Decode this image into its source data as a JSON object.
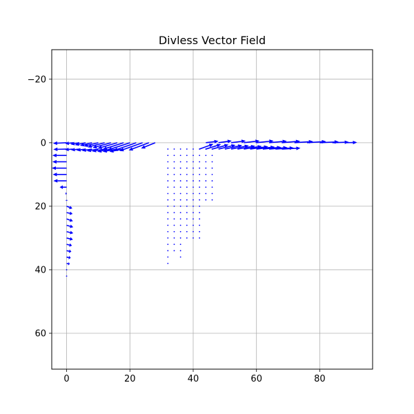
{
  "chart_data": {
    "type": "quiver",
    "title": "Divless Vector Field",
    "xlabel": "",
    "ylabel": "",
    "xlim": [
      -4.7,
      96.7
    ],
    "ylim": [
      71.3,
      -29.3
    ],
    "y_inverted": true,
    "grid": true,
    "x_ticks": [
      0,
      20,
      40,
      60,
      80
    ],
    "y_ticks": [
      -20,
      0,
      20,
      40,
      60
    ],
    "arrow_color": "#0000ff",
    "grid_color": "#b0b0b0",
    "series": [
      {
        "region": "top-left band",
        "vectors": [
          {
            "x": 0,
            "y": 0,
            "u": -4.3,
            "v": 0.2
          },
          {
            "x": 2,
            "y": 0,
            "u": -2.4,
            "v": 0.3
          },
          {
            "x": 4,
            "y": 0,
            "u": -2.8,
            "v": 0.5
          },
          {
            "x": 6,
            "y": 0,
            "u": -3.4,
            "v": 0.7
          },
          {
            "x": 8,
            "y": 0,
            "u": -3.8,
            "v": 0.9
          },
          {
            "x": 10,
            "y": 0,
            "u": -4.6,
            "v": 1.1
          },
          {
            "x": 12,
            "y": 0,
            "u": -5.4,
            "v": 1.4
          },
          {
            "x": 14,
            "y": 0,
            "u": -5.8,
            "v": 1.6
          },
          {
            "x": 16,
            "y": 0,
            "u": -6.2,
            "v": 1.8
          },
          {
            "x": 18,
            "y": 0,
            "u": -6.6,
            "v": 2.1
          },
          {
            "x": 20,
            "y": 0,
            "u": -7.0,
            "v": 2.3
          },
          {
            "x": 22,
            "y": 0,
            "u": -7.2,
            "v": 2.5
          },
          {
            "x": 24,
            "y": 0,
            "u": -7.3,
            "v": 2.6
          },
          {
            "x": 26,
            "y": 0,
            "u": -6.4,
            "v": 2.4
          },
          {
            "x": 28,
            "y": 0,
            "u": -4.5,
            "v": 1.8
          },
          {
            "x": 0,
            "y": 2,
            "u": -4.2,
            "v": 0.1
          },
          {
            "x": 2,
            "y": 2,
            "u": -2.5,
            "v": 0.2
          },
          {
            "x": 4,
            "y": 2,
            "u": -2.6,
            "v": 0.3
          },
          {
            "x": 6,
            "y": 2,
            "u": -2.9,
            "v": 0.4
          },
          {
            "x": 8,
            "y": 2,
            "u": -3.2,
            "v": 0.5
          },
          {
            "x": 10,
            "y": 2,
            "u": -3.6,
            "v": 0.6
          },
          {
            "x": 12,
            "y": 2,
            "u": -4.0,
            "v": 0.7
          },
          {
            "x": 14,
            "y": 2,
            "u": -4.3,
            "v": 0.8
          },
          {
            "x": 16,
            "y": 2,
            "u": -4.6,
            "v": 0.8
          },
          {
            "x": 18,
            "y": 2,
            "u": -4.5,
            "v": 0.8
          }
        ]
      },
      {
        "region": "left column",
        "vectors": [
          {
            "x": 0,
            "y": 4,
            "u": -4.5,
            "v": 0.0
          },
          {
            "x": 0,
            "y": 6,
            "u": -4.5,
            "v": 0.0
          },
          {
            "x": 0,
            "y": 8,
            "u": -4.7,
            "v": 0.0
          },
          {
            "x": 0,
            "y": 10,
            "u": -4.4,
            "v": 0.0
          },
          {
            "x": 0,
            "y": 12,
            "u": -4.2,
            "v": 0.0
          },
          {
            "x": 0,
            "y": 14,
            "u": -2.2,
            "v": 0.0
          },
          {
            "x": 0,
            "y": 16,
            "u": -0.4,
            "v": 0.0
          },
          {
            "x": 0,
            "y": 18,
            "u": 0.0,
            "v": 0.3
          },
          {
            "x": 0,
            "y": 20,
            "u": 1.8,
            "v": 0.7
          },
          {
            "x": 0,
            "y": 22,
            "u": 1.9,
            "v": 0.4
          },
          {
            "x": 0,
            "y": 24,
            "u": 2.0,
            "v": 0.7
          },
          {
            "x": 0,
            "y": 26,
            "u": 2.1,
            "v": 0.6
          },
          {
            "x": 0,
            "y": 28,
            "u": 2.1,
            "v": 0.5
          },
          {
            "x": 0,
            "y": 30,
            "u": 2.0,
            "v": 0.5
          },
          {
            "x": 0,
            "y": 32,
            "u": 1.7,
            "v": 0.4
          },
          {
            "x": 0,
            "y": 34,
            "u": 1.5,
            "v": 0.3
          },
          {
            "x": 0,
            "y": 36,
            "u": 1.3,
            "v": 0.3
          },
          {
            "x": 0,
            "y": 38,
            "u": 1.0,
            "v": 0.2
          },
          {
            "x": 0,
            "y": 40,
            "u": 0.1,
            "v": 0.1
          },
          {
            "x": 0,
            "y": 42,
            "u": 0.0,
            "v": 0.0
          }
        ]
      },
      {
        "region": "top-right band",
        "vectors": [
          {
            "x": 42,
            "y": 2,
            "u": 4.4,
            "v": -1.6
          },
          {
            "x": 44,
            "y": 2,
            "u": 4.8,
            "v": -1.5
          },
          {
            "x": 46,
            "y": 2,
            "u": 5.2,
            "v": -1.4
          },
          {
            "x": 48,
            "y": 2,
            "u": 5.4,
            "v": -1.3
          },
          {
            "x": 50,
            "y": 2,
            "u": 5.5,
            "v": -1.2
          },
          {
            "x": 52,
            "y": 2,
            "u": 5.6,
            "v": -1.1
          },
          {
            "x": 54,
            "y": 2,
            "u": 5.6,
            "v": -1.0
          },
          {
            "x": 56,
            "y": 2,
            "u": 5.7,
            "v": -0.9
          },
          {
            "x": 58,
            "y": 2,
            "u": 5.7,
            "v": -0.8
          },
          {
            "x": 60,
            "y": 2,
            "u": 5.8,
            "v": -0.7
          },
          {
            "x": 62,
            "y": 2,
            "u": 5.8,
            "v": -0.6
          },
          {
            "x": 64,
            "y": 2,
            "u": 5.8,
            "v": -0.5
          },
          {
            "x": 66,
            "y": 2,
            "u": 5.8,
            "v": -0.4
          },
          {
            "x": 68,
            "y": 2,
            "u": 5.9,
            "v": -0.3
          },
          {
            "x": 44,
            "y": 0,
            "u": 4.0,
            "v": -0.5
          },
          {
            "x": 48,
            "y": 0,
            "u": 4.2,
            "v": -0.6
          },
          {
            "x": 52,
            "y": 0,
            "u": 4.6,
            "v": -0.6
          },
          {
            "x": 56,
            "y": 0,
            "u": 5.0,
            "v": -0.6
          },
          {
            "x": 60,
            "y": 0,
            "u": 5.4,
            "v": -0.6
          },
          {
            "x": 64,
            "y": 0,
            "u": 5.6,
            "v": -0.5
          },
          {
            "x": 68,
            "y": 0,
            "u": 5.8,
            "v": -0.5
          },
          {
            "x": 72,
            "y": 0,
            "u": 5.9,
            "v": -0.4
          },
          {
            "x": 76,
            "y": 0,
            "u": 6.0,
            "v": -0.4
          },
          {
            "x": 80,
            "y": 0,
            "u": 6.0,
            "v": -0.3
          },
          {
            "x": 84,
            "y": 0,
            "u": 5.2,
            "v": -0.2
          },
          {
            "x": 88,
            "y": 0,
            "u": 3.8,
            "v": -0.1
          }
        ]
      },
      {
        "region": "center dot field",
        "rows": [
          {
            "y": 2,
            "x": [
              32,
              34,
              36,
              38,
              40,
              42,
              44,
              46
            ]
          },
          {
            "y": 4,
            "x": [
              32,
              34,
              36,
              38,
              40,
              42,
              44,
              46
            ]
          },
          {
            "y": 6,
            "x": [
              32,
              34,
              36,
              38,
              40,
              42,
              44,
              46
            ]
          },
          {
            "y": 8,
            "x": [
              32,
              34,
              36,
              38,
              40,
              42,
              44,
              46
            ]
          },
          {
            "y": 10,
            "x": [
              32,
              34,
              36,
              38,
              40,
              42,
              44,
              46
            ]
          },
          {
            "y": 12,
            "x": [
              32,
              34,
              36,
              38,
              40,
              42,
              44,
              46
            ]
          },
          {
            "y": 14,
            "x": [
              32,
              34,
              36,
              38,
              40,
              42,
              44,
              46
            ]
          },
          {
            "y": 16,
            "x": [
              32,
              34,
              36,
              38,
              40,
              42,
              44,
              46
            ]
          },
          {
            "y": 18,
            "x": [
              32,
              34,
              36,
              38,
              40,
              42,
              44,
              46
            ]
          },
          {
            "y": 20,
            "x": [
              32,
              34,
              36,
              38,
              40,
              42
            ]
          },
          {
            "y": 22,
            "x": [
              32,
              34,
              36,
              38,
              40,
              42
            ]
          },
          {
            "y": 24,
            "x": [
              32,
              34,
              36,
              38,
              40,
              42
            ]
          },
          {
            "y": 26,
            "x": [
              32,
              34,
              36,
              38,
              40,
              42
            ]
          },
          {
            "y": 28,
            "x": [
              32,
              34,
              36,
              38,
              40,
              42
            ]
          },
          {
            "y": 30,
            "x": [
              32,
              34,
              36,
              38,
              40,
              42
            ]
          },
          {
            "y": 32,
            "x": [
              32,
              34,
              36
            ]
          },
          {
            "y": 34,
            "x": [
              32,
              34,
              36
            ]
          },
          {
            "y": 36,
            "x": [
              32,
              36
            ]
          },
          {
            "y": 38,
            "x": [
              32
            ]
          }
        ]
      }
    ]
  }
}
